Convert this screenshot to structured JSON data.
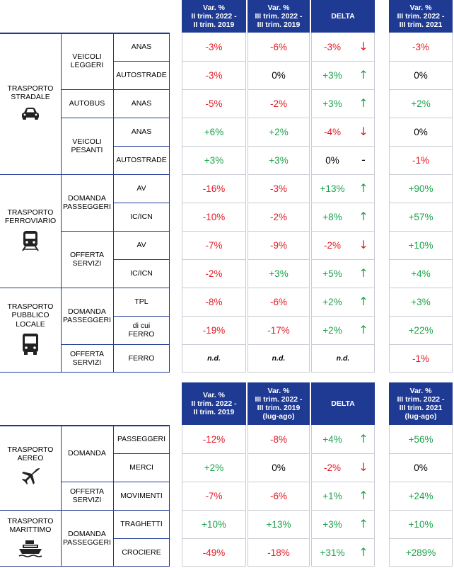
{
  "top": {
    "headers": {
      "col1": "Var. %\nII trim. 2022 -\nII trim. 2019",
      "col2": "Var. %\nIII trim. 2022 -\nIII trim. 2019",
      "delta": "DELTA",
      "col4": "Var. %\nIII trim. 2022 -\nIII trim. 2021"
    },
    "categories": [
      {
        "label": "TRASPORTO\nSTRADALE",
        "icon": "car-icon"
      },
      {
        "label": "TRASPORTO\nFERROVIARIO",
        "icon": "train-icon"
      },
      {
        "label": "TRASPORTO\nPUBBLICO\nLOCALE",
        "icon": "bus-icon"
      }
    ],
    "subcategories": [
      {
        "label": "VEICOLI\nLEGGERI"
      },
      {
        "label": "AUTOBUS"
      },
      {
        "label": "VEICOLI\nPESANTI"
      },
      {
        "label": "DOMANDA\nPASSEGGERI"
      },
      {
        "label": "OFFERTA\nSERVIZI"
      },
      {
        "label": "DOMANDA\nPASSEGGERI"
      },
      {
        "label": "OFFERTA\nSERVIZI"
      }
    ],
    "rows": [
      {
        "label": "ANAS",
        "c1": "-3%",
        "c1c": "red",
        "c2": "-6%",
        "c2c": "red",
        "d": "-3%",
        "dc": "red",
        "arrow": "↓",
        "ac": "red",
        "c4": "-3%",
        "c4c": "red"
      },
      {
        "label": "AUTOSTRADE",
        "c1": "-3%",
        "c1c": "red",
        "c2": "0%",
        "c2c": "blk",
        "d": "+3%",
        "dc": "grn",
        "arrow": "↑",
        "ac": "grn",
        "c4": "0%",
        "c4c": "blk"
      },
      {
        "label": "ANAS",
        "c1": "-5%",
        "c1c": "red",
        "c2": "-2%",
        "c2c": "red",
        "d": "+3%",
        "dc": "grn",
        "arrow": "↑",
        "ac": "grn",
        "c4": "+2%",
        "c4c": "grn"
      },
      {
        "label": "ANAS",
        "c1": "+6%",
        "c1c": "grn",
        "c2": "+2%",
        "c2c": "grn",
        "d": "-4%",
        "dc": "red",
        "arrow": "↓",
        "ac": "red",
        "c4": "0%",
        "c4c": "blk"
      },
      {
        "label": "AUTOSTRADE",
        "c1": "+3%",
        "c1c": "grn",
        "c2": "+3%",
        "c2c": "grn",
        "d": "0%",
        "dc": "blk",
        "arrow": "-",
        "ac": "blk",
        "c4": "-1%",
        "c4c": "red"
      },
      {
        "label": "AV",
        "c1": "-16%",
        "c1c": "red",
        "c2": "-3%",
        "c2c": "red",
        "d": "+13%",
        "dc": "grn",
        "arrow": "↑",
        "ac": "grn",
        "c4": "+90%",
        "c4c": "grn"
      },
      {
        "label": "IC/ICN",
        "c1": "-10%",
        "c1c": "red",
        "c2": "-2%",
        "c2c": "red",
        "d": "+8%",
        "dc": "grn",
        "arrow": "↑",
        "ac": "grn",
        "c4": "+57%",
        "c4c": "grn"
      },
      {
        "label": "AV",
        "c1": "-7%",
        "c1c": "red",
        "c2": "-9%",
        "c2c": "red",
        "d": "-2%",
        "dc": "red",
        "arrow": "↓",
        "ac": "red",
        "c4": "+10%",
        "c4c": "grn"
      },
      {
        "label": "IC/ICN",
        "c1": "-2%",
        "c1c": "red",
        "c2": "+3%",
        "c2c": "grn",
        "d": "+5%",
        "dc": "grn",
        "arrow": "↑",
        "ac": "grn",
        "c4": "+4%",
        "c4c": "grn"
      },
      {
        "label": "TPL",
        "c1": "-8%",
        "c1c": "red",
        "c2": "-6%",
        "c2c": "red",
        "d": "+2%",
        "dc": "grn",
        "arrow": "↑",
        "ac": "grn",
        "c4": "+3%",
        "c4c": "grn"
      },
      {
        "label": "di cui\nFERRO",
        "c1": "-19%",
        "c1c": "red",
        "c2": "-17%",
        "c2c": "red",
        "d": "+2%",
        "dc": "grn",
        "arrow": "↑",
        "ac": "grn",
        "c4": "+22%",
        "c4c": "grn"
      },
      {
        "label": "FERRO",
        "c1": "n.d.",
        "c1c": "nd",
        "c2": "n.d.",
        "c2c": "nd",
        "d": "n.d.",
        "dc": "nd",
        "arrow": "",
        "ac": "blk",
        "c4": "-1%",
        "c4c": "red"
      }
    ]
  },
  "bottom": {
    "headers": {
      "col1": "Var. %\nII trim. 2022 -\nII trim. 2019",
      "col2": "Var. %\nIII trim. 2022 -\nIII trim. 2019\n(lug-ago)",
      "delta": "DELTA",
      "col4": "Var. %\nIII trim. 2022 -\nIII trim. 2021\n(lug-ago)"
    },
    "categories": [
      {
        "label": "TRASPORTO\nAEREO",
        "icon": "airplane-icon"
      },
      {
        "label": "TRASPORTO\nMARITTIMO",
        "icon": "ship-icon"
      }
    ],
    "subcategories": [
      {
        "label": "DOMANDA"
      },
      {
        "label": "OFFERTA\nSERVIZI"
      },
      {
        "label": "DOMANDA\nPASSEGGERI"
      }
    ],
    "rows": [
      {
        "label": "PASSEGGERI",
        "c1": "-12%",
        "c1c": "red",
        "c2": "-8%",
        "c2c": "red",
        "d": "+4%",
        "dc": "grn",
        "arrow": "↑",
        "ac": "grn",
        "c4": "+56%",
        "c4c": "grn"
      },
      {
        "label": "MERCI",
        "c1": "+2%",
        "c1c": "grn",
        "c2": "0%",
        "c2c": "blk",
        "d": "-2%",
        "dc": "red",
        "arrow": "↓",
        "ac": "red",
        "c4": "0%",
        "c4c": "blk"
      },
      {
        "label": "MOVIMENTI",
        "c1": "-7%",
        "c1c": "red",
        "c2": "-6%",
        "c2c": "red",
        "d": "+1%",
        "dc": "grn",
        "arrow": "↑",
        "ac": "grn",
        "c4": "+24%",
        "c4c": "grn"
      },
      {
        "label": "TRAGHETTI",
        "c1": "+10%",
        "c1c": "grn",
        "c2": "+13%",
        "c2c": "grn",
        "d": "+3%",
        "dc": "grn",
        "arrow": "↑",
        "ac": "grn",
        "c4": "+10%",
        "c4c": "grn"
      },
      {
        "label": "CROCIERE",
        "c1": "-49%",
        "c1c": "red",
        "c2": "-18%",
        "c2c": "red",
        "d": "+31%",
        "dc": "grn",
        "arrow": "↑",
        "ac": "grn",
        "c4": "+289%",
        "c4c": "grn"
      }
    ]
  },
  "colors": {
    "header_bg": "#1f3a93",
    "negative": "#e31b23",
    "positive": "#1aa34a"
  }
}
